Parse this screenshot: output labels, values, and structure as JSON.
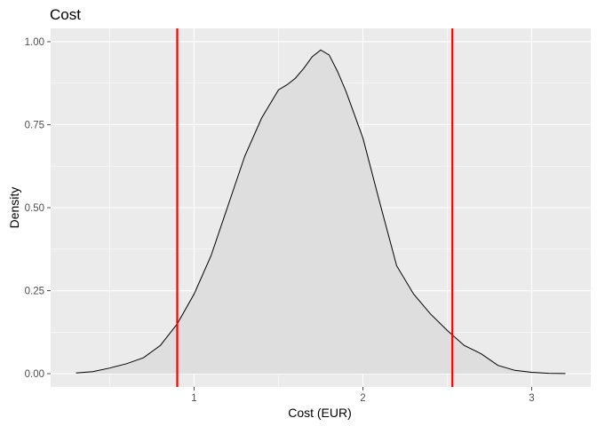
{
  "chart_data": {
    "type": "area",
    "title": "Cost",
    "xlabel": "Cost (EUR)",
    "ylabel": "Density",
    "xlim": [
      0.15,
      3.35
    ],
    "ylim": [
      -0.04,
      1.04
    ],
    "x_ticks": [
      {
        "value": 1,
        "label": "1"
      },
      {
        "value": 2,
        "label": "2"
      },
      {
        "value": 3,
        "label": "3"
      }
    ],
    "y_ticks": [
      {
        "value": 0,
        "label": "0.00"
      },
      {
        "value": 0.25,
        "label": "0.25"
      },
      {
        "value": 0.5,
        "label": "0.50"
      },
      {
        "value": 0.75,
        "label": "0.75"
      },
      {
        "value": 1.0,
        "label": "1.00"
      }
    ],
    "grid": true,
    "legend": "none",
    "series": [
      {
        "x": [
          0.3,
          0.4,
          0.5,
          0.6,
          0.7,
          0.8,
          0.9,
          1.0,
          1.1,
          1.2,
          1.3,
          1.4,
          1.5,
          1.55,
          1.6,
          1.65,
          1.7,
          1.75,
          1.8,
          1.85,
          1.9,
          2.0,
          2.1,
          2.2,
          2.3,
          2.4,
          2.5,
          2.6,
          2.7,
          2.8,
          2.9,
          3.0,
          3.1,
          3.2
        ],
        "y": [
          0.002,
          0.006,
          0.017,
          0.03,
          0.048,
          0.085,
          0.15,
          0.24,
          0.355,
          0.505,
          0.655,
          0.77,
          0.855,
          0.87,
          0.89,
          0.92,
          0.955,
          0.975,
          0.96,
          0.91,
          0.85,
          0.71,
          0.515,
          0.325,
          0.24,
          0.18,
          0.13,
          0.085,
          0.06,
          0.025,
          0.01,
          0.004,
          0.001,
          0.0005
        ]
      }
    ],
    "vlines": [
      0.9,
      2.53
    ],
    "colors": {
      "panel": "#ebebeb",
      "grid": "#ffffff",
      "fill": "#dedede",
      "line": "#000000",
      "vline": "#ff0000",
      "tick": "#4d4d4d"
    }
  }
}
